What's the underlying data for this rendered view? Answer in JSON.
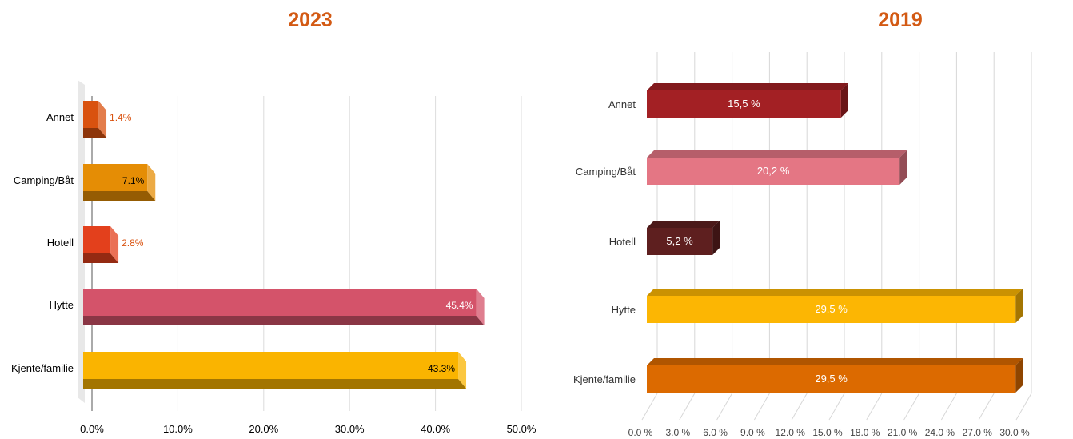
{
  "chart_data": [
    {
      "type": "bar",
      "orientation": "horizontal",
      "title": "2023",
      "categories": [
        "Annet",
        "Camping/Båt",
        "Hotell",
        "Hytte",
        "Kjente/familie"
      ],
      "values": [
        1.4,
        7.1,
        2.8,
        45.4,
        43.3
      ],
      "value_labels": [
        "1.4%",
        "7.1%",
        "2.8%",
        "45.4%",
        "43.3%"
      ],
      "xlim": [
        0,
        50
      ],
      "x_ticks": [
        "0.0%",
        "10.0%",
        "20.0%",
        "30.0%",
        "40.0%",
        "50.0%"
      ],
      "grid": true,
      "colors": [
        "#d9520f",
        "#e58d05",
        "#e3401c",
        "#d4536a",
        "#fab400"
      ]
    },
    {
      "type": "bar",
      "orientation": "horizontal",
      "title": "2019",
      "categories": [
        "Annet",
        "Camping/Båt",
        "Hotell",
        "Hytte",
        "Kjente/familie"
      ],
      "values": [
        15.5,
        20.2,
        5.2,
        29.5,
        29.5
      ],
      "value_labels": [
        "15,5 %",
        "20,2 %",
        "5,2 %",
        "29,5 %",
        "29,5 %"
      ],
      "xlim": [
        0,
        30
      ],
      "x_ticks": [
        "0.0 %",
        "3.0 %",
        "6.0 %",
        "9.0 %",
        "12.0 %",
        "15.0 %",
        "18.0 %",
        "21.0 %",
        "24.0 %",
        "27.0 %",
        "30.0 %"
      ],
      "grid": true,
      "colors": [
        "#a32024",
        "#e47684",
        "#5e1f1f",
        "#fcb603",
        "#dc6a00"
      ]
    }
  ]
}
